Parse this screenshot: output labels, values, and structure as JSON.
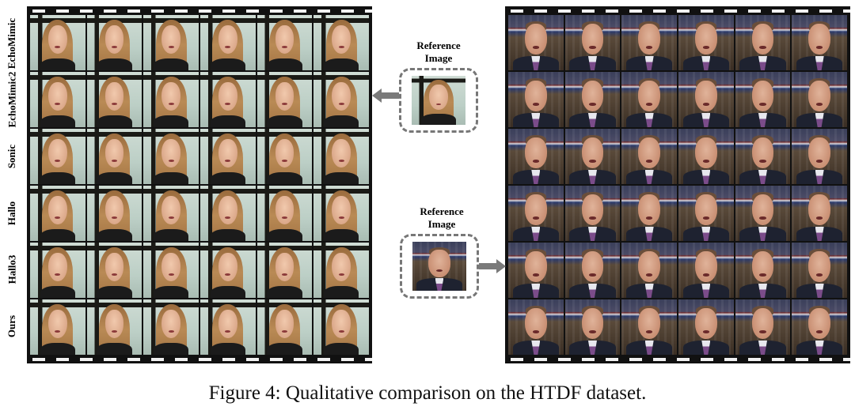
{
  "left_panel": {
    "rows": [
      "EchoMimic",
      "EchoMimic2",
      "Sonic",
      "Hallo",
      "Hallo3",
      "Ours"
    ],
    "frames_per_row": 6
  },
  "right_panel": {
    "rows": 6,
    "frames_per_row": 6
  },
  "reference_top": {
    "title_line1": "Reference",
    "title_line2": "Image"
  },
  "reference_bottom": {
    "title_line1": "Reference",
    "title_line2": "Image"
  },
  "caption": "Figure 4: Qualitative comparison on the HTDF dataset."
}
